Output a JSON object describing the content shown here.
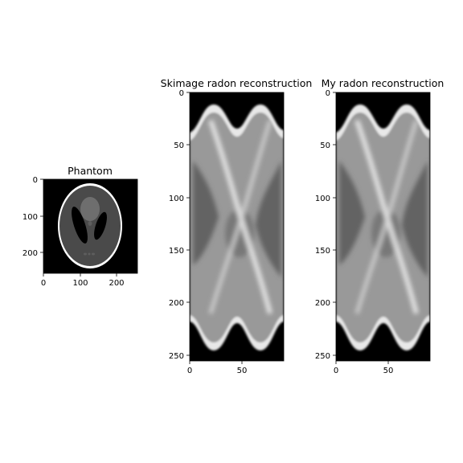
{
  "chart_data": [
    {
      "type": "heatmap",
      "title": "Phantom",
      "colormap": "gray",
      "content": "Shepp-Logan phantom",
      "x_range": [
        0,
        255
      ],
      "y_range": [
        0,
        255
      ],
      "y_inverted": true,
      "x_ticks": [
        "0",
        "100",
        "200"
      ],
      "y_ticks": [
        "0",
        "100",
        "200"
      ]
    },
    {
      "type": "heatmap",
      "title": "Skimage radon reconstruction",
      "colormap": "gray",
      "content": "sinogram",
      "x_range": [
        0,
        90
      ],
      "y_range": [
        0,
        255
      ],
      "y_inverted": true,
      "x_ticks": [
        "0",
        "50"
      ],
      "y_ticks": [
        "0",
        "50",
        "100",
        "150",
        "200",
        "250"
      ]
    },
    {
      "type": "heatmap",
      "title": "My radon reconstruction",
      "colormap": "gray",
      "content": "sinogram",
      "x_range": [
        0,
        90
      ],
      "y_range": [
        0,
        255
      ],
      "y_inverted": true,
      "x_ticks": [
        "0",
        "50"
      ],
      "y_ticks": [
        "0",
        "50",
        "100",
        "150",
        "200",
        "250"
      ]
    }
  ]
}
